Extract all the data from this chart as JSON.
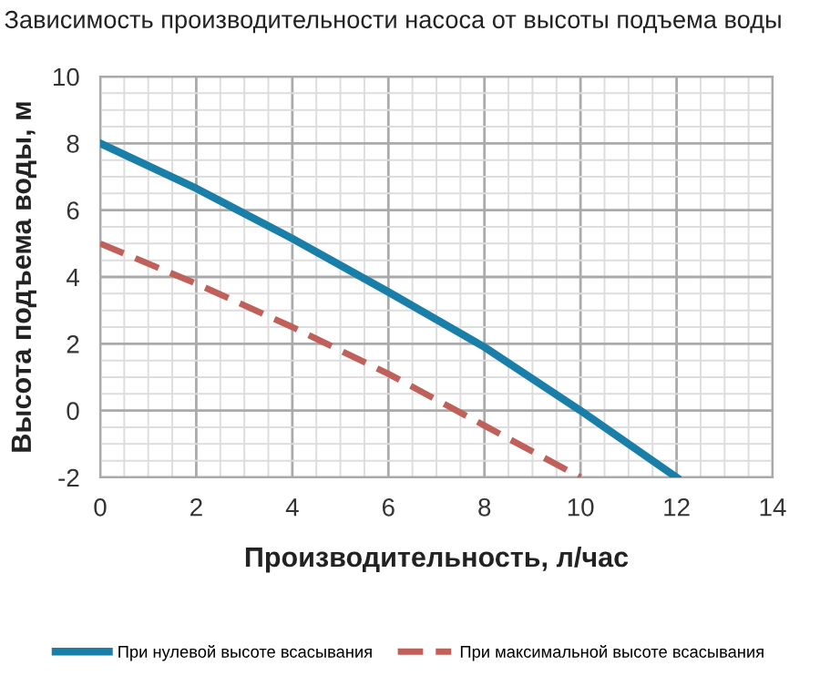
{
  "chart_data": {
    "type": "line",
    "title": "Зависимость производительности насоса от высоты подъема воды",
    "xlabel": "Производительность, л/час",
    "ylabel": "Высота подъема воды, м",
    "xlim": [
      0,
      14
    ],
    "ylim": [
      -2,
      10
    ],
    "xticks": [
      0,
      2,
      4,
      6,
      8,
      10,
      12,
      14
    ],
    "yticks": [
      -2,
      0,
      2,
      4,
      6,
      8,
      10
    ],
    "grid": true,
    "legend": "bottom",
    "marker": "none",
    "series": [
      {
        "name": "При нулевой высоте всасывания",
        "color": "#1a7fa8",
        "line_style": "solid",
        "x": [
          0,
          2,
          4,
          6,
          8,
          10,
          12
        ],
        "values": [
          8,
          6.65,
          5.15,
          3.55,
          1.9,
          0,
          -2
        ]
      },
      {
        "name": "При максимальной высоте всасывания",
        "color": "#c0605a",
        "line_style": "dashed",
        "x": [
          0,
          2,
          4,
          6,
          8,
          10
        ],
        "values": [
          5,
          3.8,
          2.5,
          1.1,
          -0.45,
          -2
        ]
      }
    ]
  }
}
